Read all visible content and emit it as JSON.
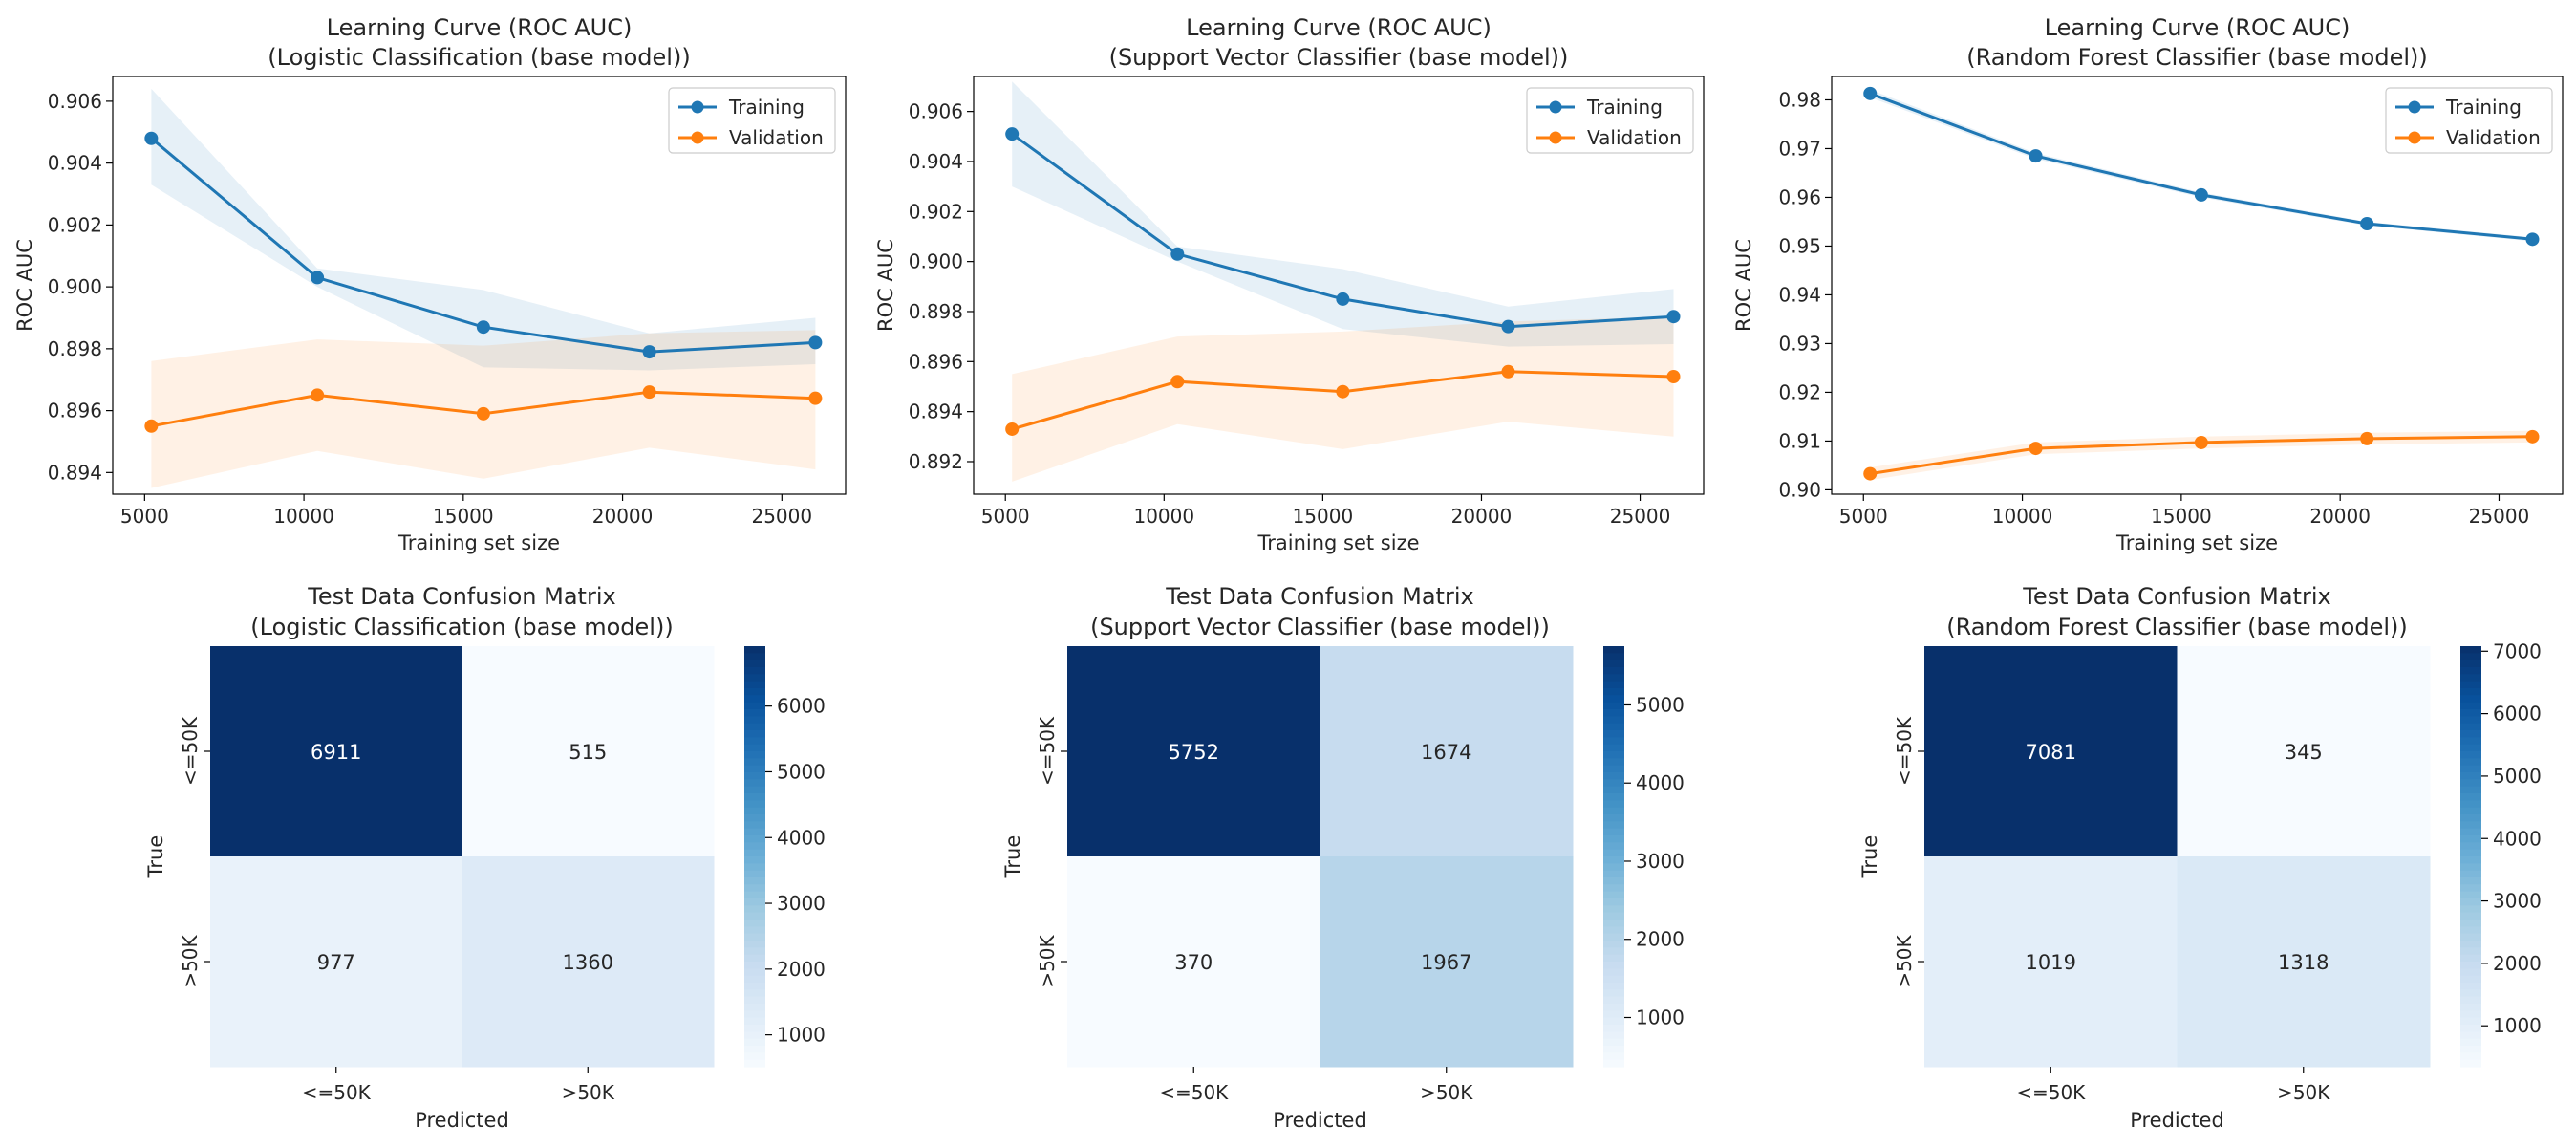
{
  "chart_data": [
    {
      "type": "line",
      "title": "Learning Curve (ROC AUC)",
      "subtitle": "(Logistic Classification (base model))",
      "xlabel": "Training set size",
      "ylabel": "ROC AUC",
      "xlim": [
        4000,
        27000
      ],
      "ylim": [
        0.8933,
        0.9068
      ],
      "xticks": [
        5000,
        10000,
        15000,
        20000,
        25000
      ],
      "yticks": [
        0.894,
        0.896,
        0.898,
        0.9,
        0.902,
        0.904,
        0.906
      ],
      "x": [
        5210,
        10421,
        15631,
        20842,
        26052
      ],
      "series": [
        {
          "name": "Training",
          "color": "#1f77b4",
          "values": [
            0.9048,
            0.9003,
            0.8987,
            0.8979,
            0.8982
          ],
          "band_low": [
            0.9033,
            0.9,
            0.8974,
            0.8973,
            0.8975
          ],
          "band_high": [
            0.9064,
            0.9006,
            0.8999,
            0.8985,
            0.899
          ]
        },
        {
          "name": "Validation",
          "color": "#ff7f0e",
          "values": [
            0.8955,
            0.8965,
            0.8959,
            0.8966,
            0.8964
          ],
          "band_low": [
            0.8935,
            0.8947,
            0.8938,
            0.8948,
            0.8941
          ],
          "band_high": [
            0.8976,
            0.8983,
            0.8981,
            0.8985,
            0.8986
          ]
        }
      ],
      "legend": "top-right",
      "grid": false
    },
    {
      "type": "line",
      "title": "Learning Curve (ROC AUC)",
      "subtitle": "(Support Vector Classifier (base model))",
      "xlabel": "Training set size",
      "ylabel": "ROC AUC",
      "xlim": [
        4000,
        27000
      ],
      "ylim": [
        0.8907,
        0.9074
      ],
      "xticks": [
        5000,
        10000,
        15000,
        20000,
        25000
      ],
      "yticks": [
        0.892,
        0.894,
        0.896,
        0.898,
        0.9,
        0.902,
        0.904,
        0.906
      ],
      "x": [
        5210,
        10421,
        15631,
        20842,
        26052
      ],
      "series": [
        {
          "name": "Training",
          "color": "#1f77b4",
          "values": [
            0.9051,
            0.9003,
            0.8985,
            0.8974,
            0.8978
          ],
          "band_low": [
            0.903,
            0.9,
            0.8973,
            0.8966,
            0.8967
          ],
          "band_high": [
            0.9072,
            0.9006,
            0.8997,
            0.8982,
            0.8989
          ]
        },
        {
          "name": "Validation",
          "color": "#ff7f0e",
          "values": [
            0.8933,
            0.8952,
            0.8948,
            0.8956,
            0.8954
          ],
          "band_low": [
            0.8912,
            0.8935,
            0.8925,
            0.8936,
            0.893
          ],
          "band_high": [
            0.8955,
            0.897,
            0.8972,
            0.8976,
            0.8978
          ]
        }
      ],
      "legend": "top-right",
      "grid": false
    },
    {
      "type": "line",
      "title": "Learning Curve (ROC AUC)",
      "subtitle": "(Random Forest Classifier (base model))",
      "xlabel": "Training set size",
      "ylabel": "ROC AUC",
      "xlim": [
        4000,
        27000
      ],
      "ylim": [
        0.8991,
        0.9848
      ],
      "xticks": [
        5000,
        10000,
        15000,
        20000,
        25000
      ],
      "yticks": [
        0.9,
        0.91,
        0.92,
        0.93,
        0.94,
        0.95,
        0.96,
        0.97,
        0.98
      ],
      "x": [
        5210,
        10421,
        15631,
        20842,
        26052
      ],
      "series": [
        {
          "name": "Training",
          "color": "#1f77b4",
          "values": [
            0.9813,
            0.9685,
            0.9605,
            0.9546,
            0.9514
          ],
          "band_low": [
            0.9805,
            0.9679,
            0.96,
            0.9542,
            0.951
          ],
          "band_high": [
            0.9821,
            0.9691,
            0.961,
            0.955,
            0.9518
          ]
        },
        {
          "name": "Validation",
          "color": "#ff7f0e",
          "values": [
            0.9033,
            0.9085,
            0.9097,
            0.9105,
            0.9109
          ],
          "band_low": [
            0.902,
            0.9073,
            0.9085,
            0.9093,
            0.9097
          ],
          "band_high": [
            0.9046,
            0.9097,
            0.9109,
            0.9117,
            0.9121
          ]
        }
      ],
      "legend": "top-right",
      "grid": false
    },
    {
      "type": "heatmap",
      "title": "Test Data Confusion Matrix",
      "subtitle": "(Logistic Classification (base model))",
      "xlabel": "Predicted",
      "ylabel": "True",
      "x_categories": [
        "<=50K",
        ">50K"
      ],
      "y_categories": [
        "<=50K",
        ">50K"
      ],
      "values": [
        [
          6911,
          515
        ],
        [
          977,
          1360
        ]
      ],
      "colormap": "Blues",
      "vmin": 515,
      "vmax": 6911,
      "colorbar_ticks": [
        1000,
        2000,
        3000,
        4000,
        5000,
        6000
      ]
    },
    {
      "type": "heatmap",
      "title": "Test Data Confusion Matrix",
      "subtitle": "(Support Vector Classifier (base model))",
      "xlabel": "Predicted",
      "ylabel": "True",
      "x_categories": [
        "<=50K",
        ">50K"
      ],
      "y_categories": [
        "<=50K",
        ">50K"
      ],
      "values": [
        [
          5752,
          1674
        ],
        [
          370,
          1967
        ]
      ],
      "colormap": "Blues",
      "vmin": 370,
      "vmax": 5752,
      "colorbar_ticks": [
        1000,
        2000,
        3000,
        4000,
        5000
      ]
    },
    {
      "type": "heatmap",
      "title": "Test Data Confusion Matrix",
      "subtitle": "(Random Forest Classifier (base model))",
      "xlabel": "Predicted",
      "ylabel": "True",
      "x_categories": [
        "<=50K",
        ">50K"
      ],
      "y_categories": [
        "<=50K",
        ">50K"
      ],
      "values": [
        [
          7081,
          345
        ],
        [
          1019,
          1318
        ]
      ],
      "colormap": "Blues",
      "vmin": 345,
      "vmax": 7081,
      "colorbar_ticks": [
        1000,
        2000,
        3000,
        4000,
        5000,
        6000,
        7000
      ]
    }
  ]
}
